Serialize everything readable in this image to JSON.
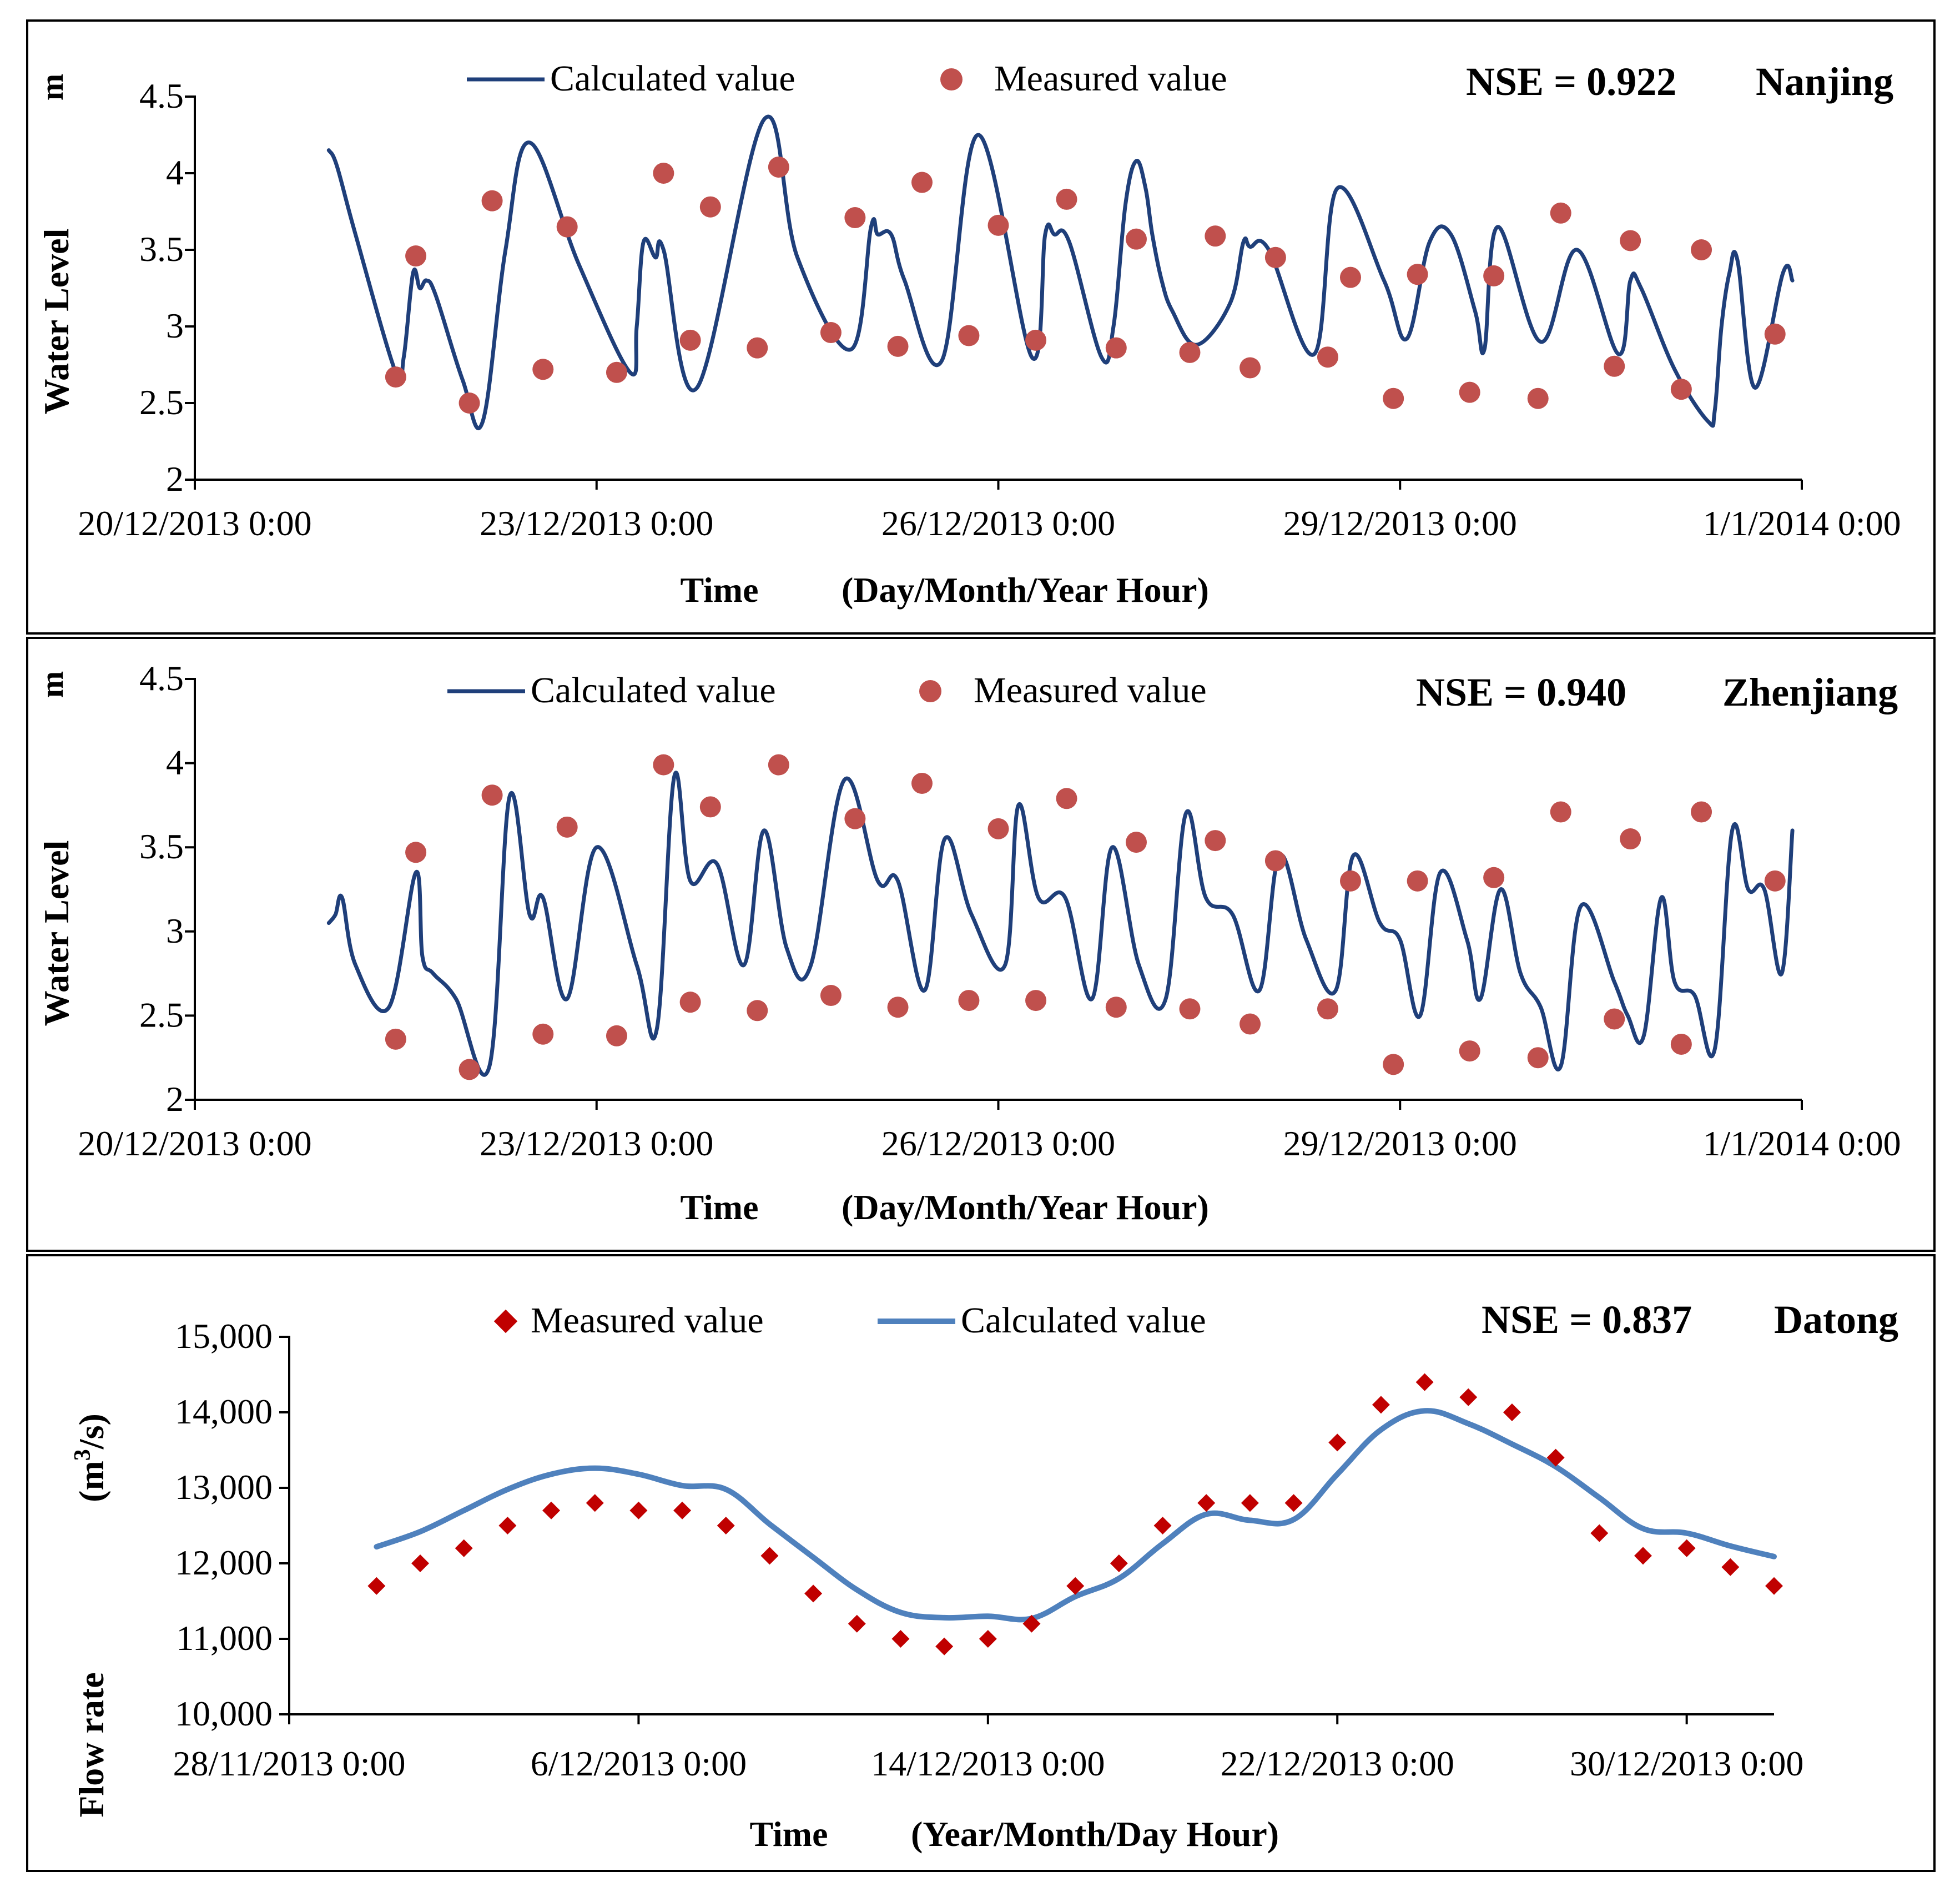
{
  "colors": {
    "line_dark": "#1F3F7A",
    "marker_red": "#C0504D",
    "line_blue": "#4F81BD",
    "marker_dark_red": "#C00000"
  },
  "chart_data": [
    {
      "id": "nanjing",
      "type": "line",
      "station": "Nanjing",
      "nse": "NSE = 0.922",
      "ylabel": "Water Level",
      "yunit": "m",
      "xlabel_time": "Time",
      "xlabel_format": "(Day/Month/Year  Hour)",
      "ylim": [
        2,
        4.5
      ],
      "yticks": [
        "2",
        "2.5",
        "3",
        "3.5",
        "4",
        "4.5"
      ],
      "xlim_days": [
        0,
        12
      ],
      "xtick_days": [
        0,
        3,
        6,
        9,
        12
      ],
      "xtick_labels": [
        "20/12/2013 0:00",
        "23/12/2013 0:00",
        "26/12/2013 0:00",
        "29/12/2013 0:00",
        "1/1/2014 0:00"
      ],
      "legend": {
        "calculated": "Calculated value",
        "measured": "Measured value"
      },
      "calculated": {
        "name": "Calculated value",
        "x": [
          1.0,
          1.06,
          1.2,
          1.5,
          1.56,
          1.63,
          1.68,
          1.73,
          1.8,
          2.0,
          2.15,
          2.32,
          2.5,
          2.87,
          3.25,
          3.3,
          3.35,
          3.44,
          3.5,
          3.75,
          4.25,
          4.5,
          4.9,
          5.05,
          5.1,
          5.2,
          5.3,
          5.58,
          5.85,
          6.25,
          6.35,
          6.42,
          6.53,
          6.77,
          6.86,
          6.95,
          7.03,
          7.1,
          7.15,
          7.22,
          7.3,
          7.48,
          7.73,
          7.83,
          7.88,
          8.02,
          8.36,
          8.53,
          8.88,
          9.05,
          9.22,
          9.38,
          9.56,
          9.63,
          9.73,
          10.05,
          10.32,
          10.63,
          10.72,
          10.8,
          11.05,
          11.3,
          11.35,
          11.4,
          11.46,
          11.52,
          11.65,
          11.86,
          11.93
        ],
        "y": [
          4.15,
          4.05,
          3.6,
          2.7,
          2.8,
          3.35,
          3.25,
          3.3,
          3.2,
          2.65,
          2.38,
          3.5,
          4.2,
          3.4,
          2.7,
          3.0,
          3.55,
          3.45,
          3.5,
          2.6,
          4.35,
          3.45,
          2.85,
          3.65,
          3.6,
          3.6,
          3.3,
          2.78,
          4.25,
          2.8,
          3.6,
          3.6,
          3.55,
          2.8,
          3.0,
          3.8,
          4.08,
          3.9,
          3.6,
          3.3,
          3.1,
          2.88,
          3.15,
          3.55,
          3.52,
          3.5,
          2.82,
          3.9,
          3.3,
          2.92,
          3.55,
          3.6,
          3.1,
          2.85,
          3.65,
          2.9,
          3.5,
          2.82,
          3.3,
          3.25,
          2.72,
          2.38,
          2.45,
          3.0,
          3.35,
          3.43,
          2.6,
          3.35,
          3.3
        ]
      },
      "measured": {
        "name": "Measured value",
        "x": [
          1.5,
          1.65,
          2.05,
          2.22,
          2.6,
          2.78,
          3.15,
          3.5,
          3.7,
          3.85,
          4.2,
          4.36,
          4.75,
          4.93,
          5.25,
          5.43,
          5.78,
          6.0,
          6.28,
          6.51,
          6.88,
          7.03,
          7.43,
          7.62,
          7.88,
          8.07,
          8.46,
          8.63,
          8.95,
          9.13,
          9.52,
          9.7,
          10.03,
          10.2,
          10.6,
          10.72,
          11.1,
          11.25,
          11.8
        ],
        "y": [
          2.67,
          3.46,
          2.5,
          3.82,
          2.72,
          3.65,
          2.7,
          4.0,
          2.91,
          3.78,
          2.86,
          4.04,
          2.96,
          3.71,
          2.87,
          3.94,
          2.94,
          3.66,
          2.91,
          3.83,
          2.86,
          3.57,
          2.83,
          3.59,
          2.73,
          3.45,
          2.8,
          3.32,
          2.53,
          3.34,
          2.57,
          3.33,
          2.53,
          3.74,
          2.74,
          3.56,
          2.59,
          3.5,
          2.95
        ]
      }
    },
    {
      "id": "zhenjiang",
      "type": "line",
      "station": "Zhenjiang",
      "nse": "NSE = 0.940",
      "ylabel": "Water Level",
      "yunit": "m",
      "xlabel_time": "Time",
      "xlabel_format": "(Day/Month/Year  Hour)",
      "ylim": [
        2,
        4.5
      ],
      "yticks": [
        "2",
        "2.5",
        "3",
        "3.5",
        "4",
        "4.5"
      ],
      "xlim_days": [
        0,
        12
      ],
      "xtick_days": [
        0,
        3,
        6,
        9,
        12
      ],
      "xtick_labels": [
        "20/12/2013 0:00",
        "23/12/2013 0:00",
        "26/12/2013 0:00",
        "29/12/2013 0:00",
        "1/1/2014 0:00"
      ],
      "legend": {
        "calculated": "Calculated value",
        "measured": "Measured value"
      },
      "calculated": {
        "name": "Calculated value",
        "x": [
          1.0,
          1.05,
          1.1,
          1.2,
          1.45,
          1.65,
          1.7,
          1.78,
          1.95,
          2.2,
          2.35,
          2.5,
          2.6,
          2.78,
          3.0,
          3.3,
          3.45,
          3.58,
          3.7,
          3.9,
          4.1,
          4.25,
          4.42,
          4.6,
          4.85,
          5.1,
          5.25,
          5.45,
          5.6,
          5.8,
          6.05,
          6.15,
          6.3,
          6.5,
          6.7,
          6.85,
          7.05,
          7.25,
          7.4,
          7.55,
          7.75,
          7.95,
          8.1,
          8.3,
          8.52,
          8.65,
          8.85,
          9.0,
          9.15,
          9.3,
          9.5,
          9.6,
          9.75,
          9.9,
          10.05,
          10.2,
          10.35,
          10.6,
          10.7,
          10.82,
          10.95,
          11.05,
          11.2,
          11.35,
          11.48,
          11.6,
          11.72,
          11.85,
          11.93
        ],
        "y": [
          3.05,
          3.1,
          3.2,
          2.8,
          2.55,
          3.35,
          2.85,
          2.75,
          2.6,
          2.2,
          3.8,
          3.1,
          3.2,
          2.6,
          3.5,
          2.8,
          2.42,
          3.92,
          3.3,
          3.4,
          2.8,
          3.6,
          2.9,
          2.8,
          3.9,
          3.3,
          3.3,
          2.65,
          3.55,
          3.1,
          2.8,
          3.75,
          3.2,
          3.2,
          2.6,
          3.5,
          2.8,
          2.6,
          3.7,
          3.2,
          3.1,
          2.65,
          3.45,
          2.95,
          2.65,
          3.45,
          3.05,
          2.95,
          2.5,
          3.35,
          2.95,
          2.6,
          3.25,
          2.75,
          2.55,
          2.2,
          3.15,
          2.7,
          2.5,
          2.38,
          3.2,
          2.7,
          2.62,
          2.3,
          3.6,
          3.25,
          3.25,
          2.75,
          3.6
        ]
      },
      "measured": {
        "name": "Measured value",
        "x": [
          1.5,
          1.65,
          2.05,
          2.22,
          2.6,
          2.78,
          3.15,
          3.5,
          3.7,
          3.85,
          4.2,
          4.36,
          4.75,
          4.93,
          5.25,
          5.43,
          5.78,
          6.0,
          6.28,
          6.51,
          6.88,
          7.03,
          7.43,
          7.62,
          7.88,
          8.07,
          8.46,
          8.63,
          8.95,
          9.13,
          9.52,
          9.7,
          10.03,
          10.2,
          10.6,
          10.72,
          11.1,
          11.25,
          11.8
        ],
        "y": [
          2.36,
          3.47,
          2.18,
          3.81,
          2.39,
          3.62,
          2.38,
          3.99,
          2.58,
          3.74,
          2.53,
          3.99,
          2.62,
          3.67,
          2.55,
          3.88,
          2.59,
          3.61,
          2.59,
          3.79,
          2.55,
          3.53,
          2.54,
          3.54,
          2.45,
          3.42,
          2.54,
          3.3,
          2.21,
          3.3,
          2.29,
          3.32,
          2.25,
          3.71,
          2.48,
          3.55,
          2.33,
          3.71,
          3.3
        ]
      }
    },
    {
      "id": "datong",
      "type": "line",
      "station": "Datong",
      "nse": "NSE = 0.837",
      "ylabel": "Flow rate",
      "yunit_base": "(m",
      "yunit_sup": "3",
      "yunit_end": "/s)",
      "xlabel_time": "Time",
      "xlabel_format": "(Year/Month/Day  Hour)",
      "ylim": [
        10000,
        15000
      ],
      "yticks": [
        "10,000",
        "11,000",
        "12,000",
        "13,000",
        "14,000",
        "15,000"
      ],
      "xlim_days": [
        0,
        34
      ],
      "xtick_days": [
        0,
        8,
        16,
        24,
        32
      ],
      "xtick_labels": [
        "28/11/2013 0:00",
        "6/12/2013 0:00",
        "14/12/2013 0:00",
        "22/12/2013 0:00",
        "30/12/2013 0:00"
      ],
      "legend": {
        "calculated": "Calculated value",
        "measured": "Measured value"
      },
      "calculated": {
        "name": "Calculated value",
        "x": [
          2,
          3,
          4,
          5,
          6,
          7,
          8,
          9,
          10,
          11,
          12,
          13,
          14,
          15,
          16,
          17,
          18,
          19,
          20,
          21,
          22,
          23,
          24,
          25,
          26,
          27,
          28,
          29,
          30,
          31,
          32,
          33,
          34
        ],
        "y": [
          12220,
          12420,
          12700,
          12980,
          13180,
          13260,
          13180,
          13030,
          12980,
          12520,
          12080,
          11650,
          11350,
          11280,
          11300,
          11270,
          11560,
          11800,
          12260,
          12650,
          12570,
          12580,
          13180,
          13770,
          14020,
          13850,
          13580,
          13280,
          12870,
          12460,
          12400,
          12230,
          12090
        ]
      },
      "measured": {
        "name": "Measured value",
        "x": [
          2,
          3,
          4,
          5,
          6,
          7,
          8,
          9,
          10,
          11,
          12,
          13,
          14,
          15,
          16,
          17,
          18,
          19,
          20,
          21,
          22,
          23,
          24,
          25,
          26,
          27,
          28,
          29,
          30,
          31,
          32,
          33,
          34
        ],
        "y": [
          11700,
          12000,
          12200,
          12500,
          12700,
          12800,
          12700,
          12700,
          12500,
          12100,
          11600,
          11200,
          11000,
          10900,
          11000,
          11200,
          11700,
          12000,
          12500,
          12800,
          12800,
          12800,
          13600,
          14100,
          14400,
          14200,
          14000,
          13400,
          12400,
          12100,
          12200,
          11950,
          11700
        ]
      }
    }
  ]
}
